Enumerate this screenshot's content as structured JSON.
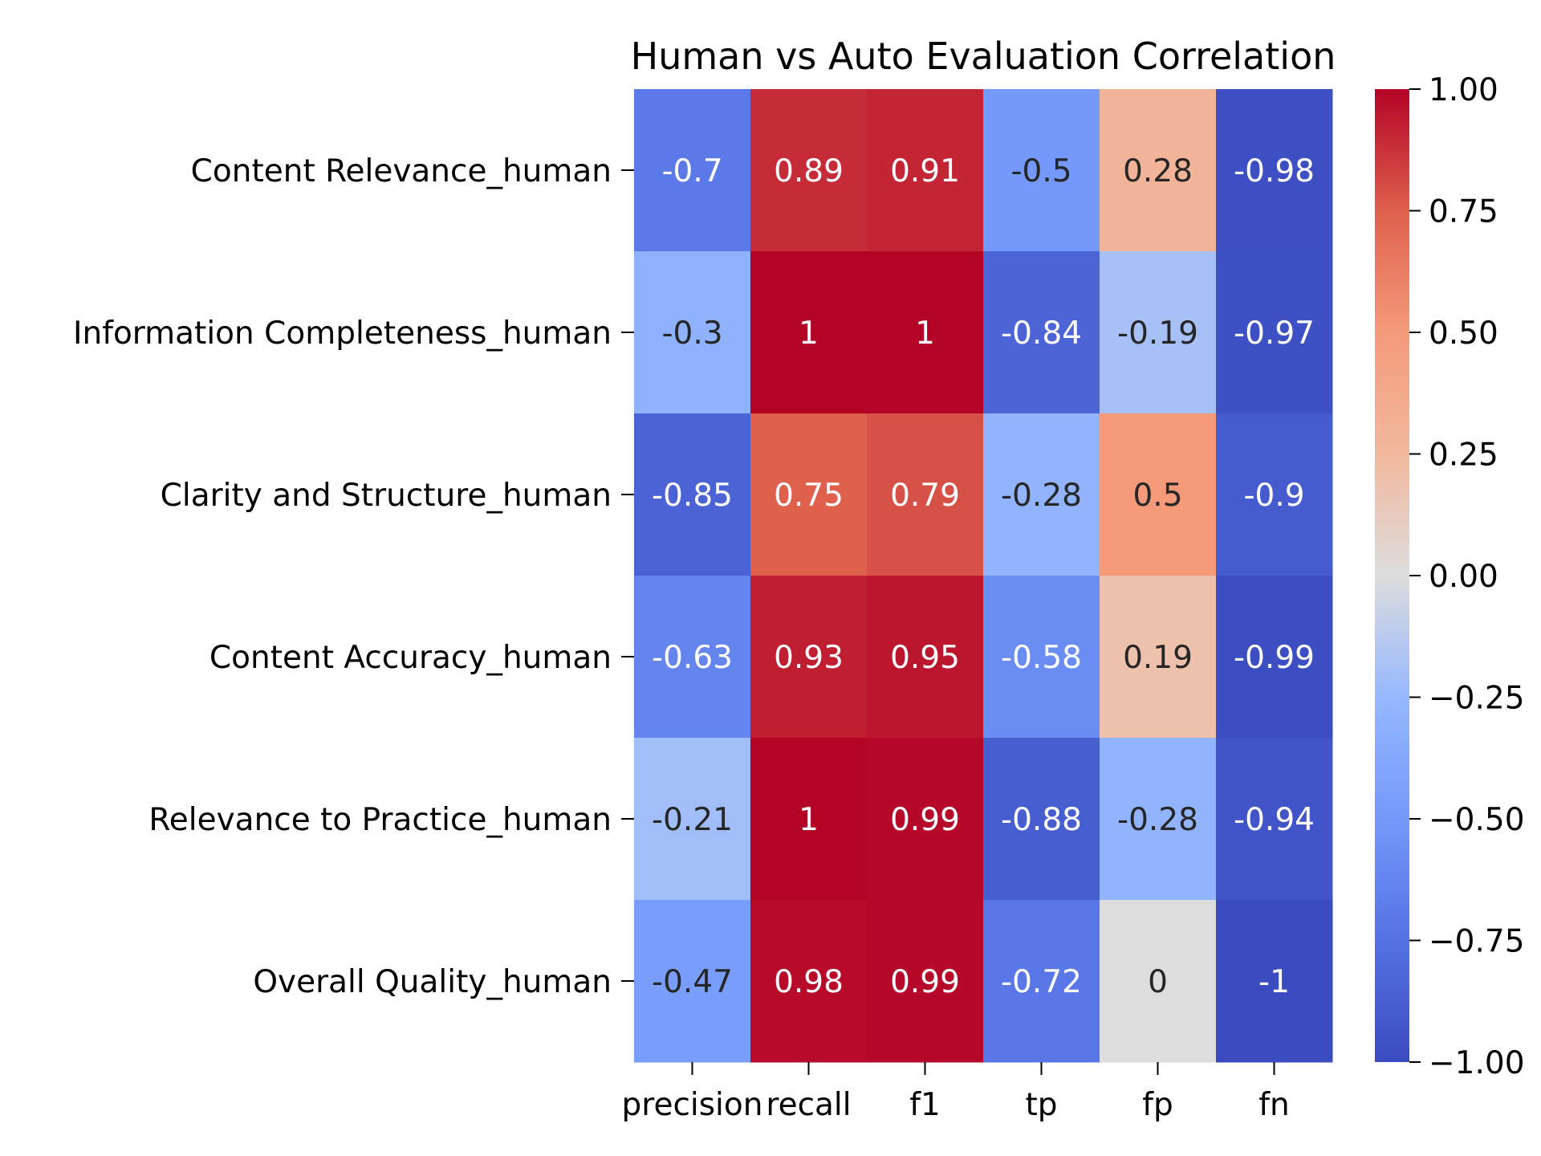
{
  "chart_data": {
    "type": "heatmap",
    "title": "Human vs Auto Evaluation Correlation",
    "xlabel": "",
    "ylabel": "",
    "columns": [
      "precision",
      "recall",
      "f1",
      "tp",
      "fp",
      "fn"
    ],
    "rows": [
      "Content Relevance_human",
      "Information Completeness_human",
      "Clarity and Structure_human",
      "Content Accuracy_human",
      "Relevance to Practice_human",
      "Overall Quality_human"
    ],
    "values": [
      [
        -0.7,
        0.89,
        0.91,
        -0.5,
        0.28,
        -0.98
      ],
      [
        -0.3,
        1.0,
        1.0,
        -0.84,
        -0.19,
        -0.97
      ],
      [
        -0.85,
        0.75,
        0.79,
        -0.28,
        0.5,
        -0.9
      ],
      [
        -0.63,
        0.93,
        0.95,
        -0.58,
        0.19,
        -0.99
      ],
      [
        -0.21,
        1.0,
        0.99,
        -0.88,
        -0.28,
        -0.94
      ],
      [
        -0.47,
        0.98,
        0.99,
        -0.72,
        0.0,
        -1.0
      ]
    ],
    "annotations": [
      [
        "-0.7",
        "0.89",
        "0.91",
        "-0.5",
        "0.28",
        "-0.98"
      ],
      [
        "-0.3",
        "1",
        "1",
        "-0.84",
        "-0.19",
        "-0.97"
      ],
      [
        "-0.85",
        "0.75",
        "0.79",
        "-0.28",
        "0.5",
        "-0.9"
      ],
      [
        "-0.63",
        "0.93",
        "0.95",
        "-0.58",
        "0.19",
        "-0.99"
      ],
      [
        "-0.21",
        "1",
        "0.99",
        "-0.88",
        "-0.28",
        "-0.94"
      ],
      [
        "-0.47",
        "0.98",
        "0.99",
        "-0.72",
        "0",
        "-1"
      ]
    ],
    "colormap": "coolwarm",
    "vmin": -1.0,
    "vmax": 1.0,
    "colorbar": {
      "ticks": [
        1.0,
        0.75,
        0.5,
        0.25,
        0.0,
        -0.25,
        -0.5,
        -0.75,
        -1.0
      ],
      "tick_labels": [
        "1.00",
        "0.75",
        "0.50",
        "0.25",
        "0.00",
        "−0.25",
        "−0.50",
        "−0.75",
        "−1.00"
      ]
    }
  }
}
